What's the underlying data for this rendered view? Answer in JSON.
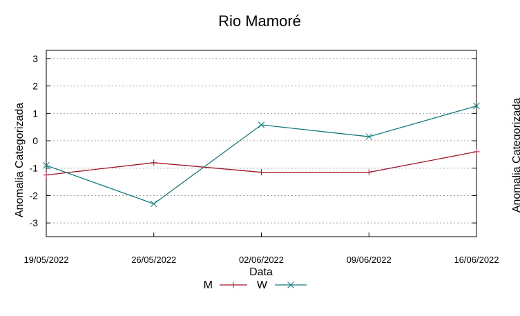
{
  "chart_data": {
    "type": "line",
    "title": "Rio Mamoré",
    "xlabel": "Data",
    "ylabel": "Anomalia Categorizada",
    "y2label": "Anomalia Categorizada",
    "categories": [
      "19/05/2022",
      "26/05/2022",
      "02/06/2022",
      "09/06/2022",
      "16/06/2022"
    ],
    "yticks": [
      "3",
      "2",
      "1",
      "0",
      "-1",
      "-2",
      "-3"
    ],
    "ytick_values": [
      3,
      2,
      1,
      0,
      -1,
      -2,
      -3
    ],
    "ylim": [
      -3.5,
      3.3
    ],
    "grid": true,
    "legend_position": "bottom-center",
    "series": [
      {
        "name": "M",
        "color": "#a0162a",
        "marker": "plus",
        "values": [
          -1.25,
          -0.8,
          -1.15,
          -1.15,
          -0.4
        ]
      },
      {
        "name": "W",
        "color": "#127a7a",
        "marker": "cross",
        "values": [
          -0.9,
          -2.3,
          0.58,
          0.15,
          1.27
        ]
      }
    ]
  }
}
